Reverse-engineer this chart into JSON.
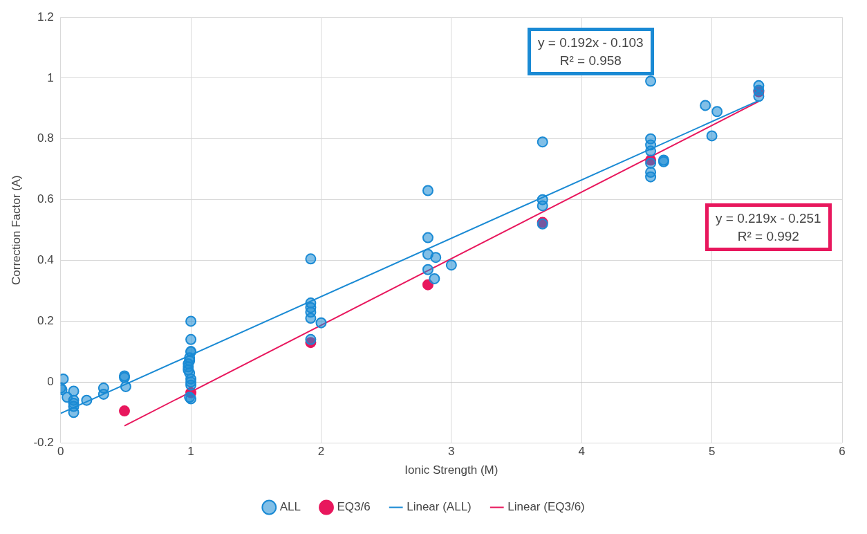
{
  "chart_data": {
    "type": "scatter",
    "xlabel": "Ionic Strength (M)",
    "ylabel": "Correction Factor (A)",
    "xlim": [
      0,
      6
    ],
    "xticks": [
      0,
      1,
      2,
      3,
      4,
      5,
      6
    ],
    "ylim": [
      -0.2,
      1.2
    ],
    "yticks": [
      -0.2,
      0,
      0.2,
      0.4,
      0.6,
      0.8,
      1,
      1.2
    ],
    "grid": true,
    "legend": "bottom",
    "marker": "circle",
    "annotations": [
      "y = 0.192x - 0.103\nR² = 0.958",
      "y = 0.219x - 0.251\nR² = 0.992"
    ],
    "series": [
      {
        "name": "ALL",
        "color": "#1a8ad4",
        "x": [
          0,
          0.01,
          0.02,
          0.05,
          0.1,
          0.1,
          0.1,
          0.1,
          0.1,
          0.2,
          0.33,
          0.33,
          0.49,
          0.49,
          0.5,
          1,
          1,
          1,
          1,
          0.99,
          0.99,
          0.98,
          0.98,
          0.98,
          0.99,
          1,
          1,
          1,
          0.99,
          1,
          1.92,
          1.92,
          1.92,
          1.92,
          1.92,
          1.92,
          2,
          2.82,
          2.82,
          2.82,
          2.82,
          2.87,
          2.88,
          3,
          3.7,
          3.7,
          3.7,
          3.7,
          4.53,
          4.53,
          4.53,
          4.53,
          4.53,
          4.53,
          4.53,
          4.63,
          4.63,
          4.95,
          5.04,
          5,
          5.36,
          5.36,
          5.36
        ],
        "values": [
          -0.02,
          -0.025,
          0.01,
          -0.05,
          -0.03,
          -0.06,
          -0.07,
          -0.1,
          -0.08,
          -0.06,
          -0.02,
          -0.04,
          0.02,
          0.015,
          -0.015,
          0.2,
          0.14,
          0.1,
          0.1,
          0.08,
          0.07,
          0.06,
          0.05,
          0.04,
          0.03,
          0.01,
          0,
          -0.01,
          -0.05,
          -0.055,
          0.405,
          0.26,
          0.245,
          0.23,
          0.21,
          0.14,
          0.195,
          0.63,
          0.475,
          0.42,
          0.37,
          0.34,
          0.41,
          0.385,
          0.79,
          0.6,
          0.58,
          0.52,
          0.99,
          0.8,
          0.78,
          0.76,
          0.72,
          0.69,
          0.675,
          0.73,
          0.725,
          0.91,
          0.89,
          0.81,
          0.975,
          0.96,
          0.94
        ]
      },
      {
        "name": "EQ3/6",
        "color": "#e8175d",
        "x": [
          0.49,
          1,
          1.92,
          2.82,
          3.7,
          4.53,
          5.36
        ],
        "values": [
          -0.095,
          -0.035,
          0.13,
          0.32,
          0.525,
          0.73,
          0.955
        ]
      },
      {
        "name": "Linear (ALL)",
        "type": "line",
        "marker": "none",
        "color": "#1a8ad4",
        "x": [
          0,
          5.36
        ],
        "values": [
          -0.103,
          0.926
        ]
      },
      {
        "name": "Linear (EQ3/6)",
        "type": "line",
        "marker": "none",
        "color": "#e8175d",
        "x": [
          0.49,
          5.36
        ],
        "values": [
          -0.144,
          0.923
        ]
      }
    ]
  }
}
